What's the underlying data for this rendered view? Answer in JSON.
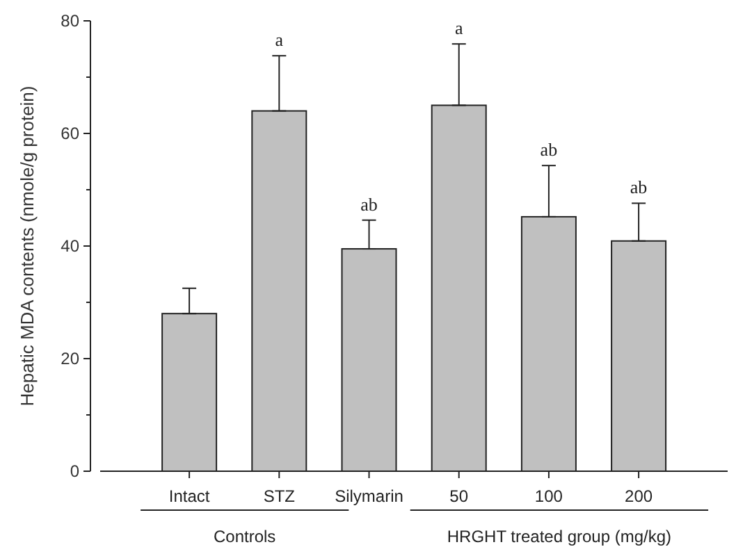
{
  "chart_data": {
    "type": "bar",
    "ylabel": "Hepatic MDA contents (nmole/g protein)",
    "categories": [
      "Intact",
      "STZ",
      "Silymarin",
      "50",
      "100",
      "200"
    ],
    "values": [
      28,
      64,
      39.5,
      65,
      45.2,
      40.9
    ],
    "errors": [
      [
        28,
        32.5
      ],
      [
        64,
        73.8
      ],
      [
        39.5,
        44.6
      ],
      [
        65,
        75.9
      ],
      [
        45.2,
        54.3
      ],
      [
        40.9,
        47.6
      ]
    ],
    "color": "#c0c0c0",
    "ylim": [
      0,
      80
    ],
    "yticks": [
      0,
      {
        "value": 10,
        "label": null
      },
      20,
      {
        "value": 30,
        "label": null
      },
      40,
      {
        "value": 50,
        "label": null
      },
      60,
      {
        "value": 70,
        "label": null
      },
      80
    ],
    "grid": false,
    "annotations": [
      {
        "text": "a",
        "x": "STZ",
        "y": 73.8
      },
      {
        "text": "ab",
        "x": "Silymarin",
        "y": 44.6
      },
      {
        "text": "a",
        "x": "50",
        "y": 75.9
      },
      {
        "text": "ab",
        "x": "100",
        "y": 54.3
      },
      {
        "text": "ab",
        "x": "200",
        "y": 47.6
      },
      "Controls",
      "HRGHT treated group (mg/kg)"
    ]
  }
}
